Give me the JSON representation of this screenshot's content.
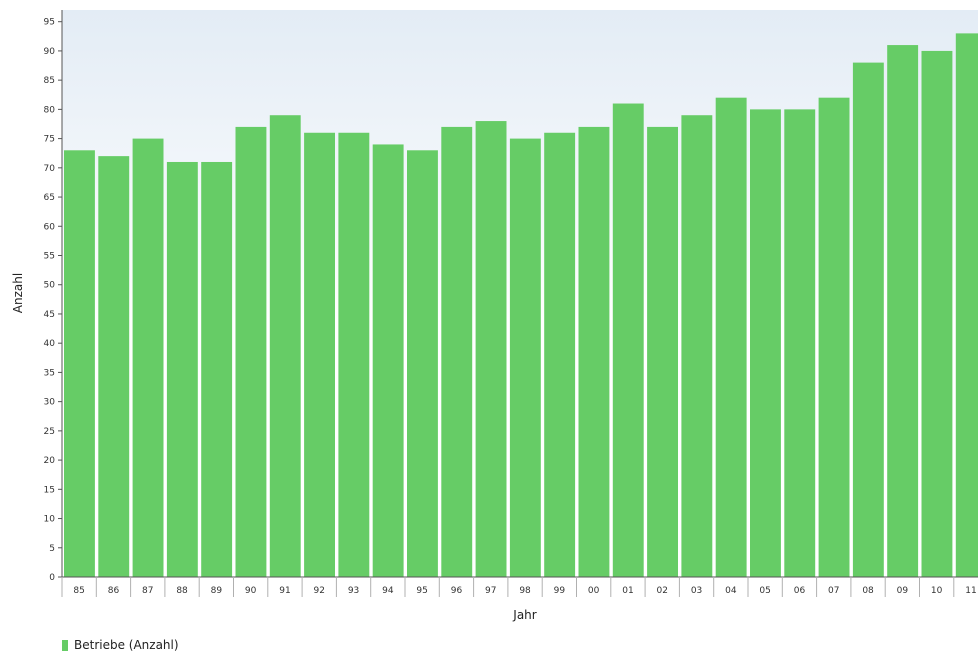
{
  "chart_data": {
    "type": "bar",
    "xlabel": "Jahr",
    "ylabel": "Anzahl",
    "categories": [
      "85",
      "86",
      "87",
      "88",
      "89",
      "90",
      "91",
      "92",
      "93",
      "94",
      "95",
      "96",
      "97",
      "98",
      "99",
      "00",
      "01",
      "02",
      "03",
      "04",
      "05",
      "06",
      "07",
      "08",
      "09",
      "10",
      "11"
    ],
    "series": [
      {
        "name": "Betriebe (Anzahl)",
        "values": [
          73,
          72,
          75,
          71,
          71,
          77,
          79,
          76,
          76,
          74,
          73,
          77,
          78,
          75,
          76,
          77,
          81,
          77,
          79,
          82,
          80,
          80,
          82,
          88,
          91,
          90,
          93
        ]
      }
    ],
    "ylim": [
      0,
      97
    ],
    "yticks": [
      0,
      5,
      10,
      15,
      20,
      25,
      30,
      35,
      40,
      45,
      50,
      55,
      60,
      65,
      70,
      75,
      80,
      85,
      90,
      95
    ],
    "grid": false,
    "legend_position": "bottom-left",
    "colors": {
      "bar": "#66cc66",
      "plot_top": "#e3ecf5",
      "plot_bottom": "#ffffff",
      "axis": "#555555"
    }
  },
  "legend": {
    "label": "Betriebe (Anzahl)"
  }
}
